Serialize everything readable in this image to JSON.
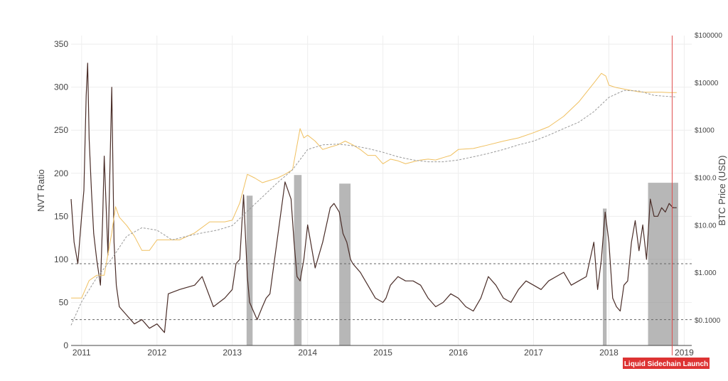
{
  "chart_data": {
    "type": "line",
    "title": "",
    "x_axis": {
      "label": "",
      "ticks": [
        "2011",
        "2012",
        "2013",
        "2014",
        "2015",
        "2016",
        "2017",
        "2018",
        "2019"
      ],
      "range": [
        2010.86,
        2019.1
      ]
    },
    "y_left": {
      "label": "NVT Ratio",
      "range": [
        0,
        360
      ],
      "ticks": [
        "0",
        "50",
        "100",
        "150",
        "200",
        "250",
        "300",
        "350"
      ]
    },
    "y_right": {
      "label": "BTC Price (USD)",
      "scale": "log",
      "range": [
        0.03,
        100000
      ],
      "ticks": [
        "$0.1000",
        "$1.000",
        "$10.00",
        "$100.0",
        "$1000",
        "$10000",
        "$100000"
      ]
    },
    "grid": true,
    "reference_lines": [
      {
        "axis": "left",
        "value": 95,
        "style": "dashed"
      },
      {
        "axis": "left",
        "value": 30,
        "style": "dashed"
      }
    ],
    "vertical_marker": {
      "x": 2018.84,
      "color": "#e05050"
    },
    "annotation": {
      "text": "Liquid Sidechain Launch",
      "color": "#dd3333"
    },
    "shaded_regions": [
      {
        "x0": 2013.19,
        "x1": 2013.27,
        "height": 174
      },
      {
        "x0": 2013.82,
        "x1": 2013.92,
        "height": 198
      },
      {
        "x0": 2014.42,
        "x1": 2014.57,
        "height": 188
      },
      {
        "x0": 2017.92,
        "x1": 2017.97,
        "height": 159
      },
      {
        "x0": 2018.52,
        "x1": 2018.92,
        "height": 189
      }
    ],
    "series": [
      {
        "axis": "left",
        "color": "#4a2d28",
        "x": [
          2010.86,
          2010.9,
          2010.95,
          2011.0,
          2011.03,
          2011.06,
          2011.08,
          2011.1,
          2011.13,
          2011.16,
          2011.2,
          2011.25,
          2011.28,
          2011.3,
          2011.35,
          2011.4,
          2011.43,
          2011.46,
          2011.5,
          2011.55,
          2011.6,
          2011.7,
          2011.8,
          2011.9,
          2012.0,
          2012.1,
          2012.15,
          2012.3,
          2012.5,
          2012.6,
          2012.75,
          2012.9,
          2013.0,
          2013.05,
          2013.1,
          2013.15,
          2013.2,
          2013.23,
          2013.28,
          2013.33,
          2013.4,
          2013.45,
          2013.5,
          2013.6,
          2013.7,
          2013.78,
          2013.82,
          2013.86,
          2013.9,
          2013.95,
          2014.0,
          2014.1,
          2014.2,
          2014.3,
          2014.35,
          2014.42,
          2014.47,
          2014.52,
          2014.57,
          2014.6,
          2014.7,
          2014.8,
          2014.9,
          2015.0,
          2015.04,
          2015.1,
          2015.2,
          2015.3,
          2015.4,
          2015.5,
          2015.6,
          2015.7,
          2015.8,
          2015.9,
          2016.0,
          2016.1,
          2016.2,
          2016.3,
          2016.4,
          2016.5,
          2016.6,
          2016.7,
          2016.8,
          2016.9,
          2017.0,
          2017.1,
          2017.2,
          2017.3,
          2017.4,
          2017.5,
          2017.6,
          2017.7,
          2017.75,
          2017.8,
          2017.85,
          2017.9,
          2017.95,
          2018.0,
          2018.05,
          2018.1,
          2018.15,
          2018.2,
          2018.25,
          2018.3,
          2018.35,
          2018.4,
          2018.45,
          2018.5,
          2018.55,
          2018.6,
          2018.65,
          2018.7,
          2018.75,
          2018.8,
          2018.85,
          2018.9
        ],
        "y": [
          170,
          120,
          95,
          150,
          180,
          290,
          328,
          240,
          180,
          130,
          100,
          70,
          150,
          220,
          105,
          300,
          120,
          70,
          45,
          40,
          35,
          25,
          30,
          20,
          25,
          15,
          60,
          65,
          70,
          80,
          45,
          55,
          65,
          95,
          100,
          175,
          80,
          50,
          40,
          30,
          45,
          55,
          60,
          125,
          190,
          170,
          120,
          80,
          75,
          100,
          140,
          90,
          120,
          160,
          165,
          155,
          130,
          120,
          100,
          95,
          85,
          70,
          55,
          50,
          55,
          70,
          80,
          75,
          75,
          70,
          55,
          45,
          50,
          60,
          55,
          45,
          40,
          55,
          80,
          70,
          55,
          50,
          65,
          75,
          70,
          65,
          75,
          80,
          85,
          70,
          75,
          80,
          100,
          120,
          65,
          100,
          155,
          120,
          55,
          45,
          40,
          70,
          75,
          120,
          145,
          110,
          140,
          100,
          170,
          150,
          150,
          160,
          155,
          165,
          160,
          160
        ]
      },
      {
        "axis": "right",
        "color": "#f0c060",
        "x": [
          2010.86,
          2011.0,
          2011.1,
          2011.2,
          2011.3,
          2011.4,
          2011.45,
          2011.5,
          2011.6,
          2011.7,
          2011.8,
          2011.9,
          2012.0,
          2012.1,
          2012.3,
          2012.5,
          2012.7,
          2012.9,
          2013.0,
          2013.1,
          2013.2,
          2013.3,
          2013.4,
          2013.5,
          2013.6,
          2013.7,
          2013.8,
          2013.9,
          2013.95,
          2014.0,
          2014.1,
          2014.2,
          2014.3,
          2014.4,
          2014.5,
          2014.6,
          2014.7,
          2014.8,
          2014.9,
          2015.0,
          2015.1,
          2015.2,
          2015.3,
          2015.4,
          2015.5,
          2015.6,
          2015.7,
          2015.8,
          2015.9,
          2016.0,
          2016.2,
          2016.4,
          2016.6,
          2016.8,
          2017.0,
          2017.2,
          2017.4,
          2017.6,
          2017.8,
          2017.9,
          2017.96,
          2018.0,
          2018.05,
          2018.1,
          2018.2,
          2018.3,
          2018.4,
          2018.5,
          2018.6,
          2018.7,
          2018.8,
          2018.9
        ],
        "y": [
          0.3,
          0.3,
          0.7,
          0.9,
          0.9,
          7,
          25,
          15,
          10,
          6,
          3,
          3,
          5,
          5,
          5,
          7,
          12,
          12,
          13,
          30,
          120,
          100,
          80,
          90,
          100,
          120,
          150,
          1100,
          700,
          800,
          600,
          400,
          450,
          500,
          600,
          500,
          400,
          300,
          300,
          200,
          250,
          230,
          200,
          220,
          240,
          250,
          240,
          270,
          300,
          400,
          420,
          500,
          600,
          700,
          900,
          1200,
          2000,
          4000,
          10000,
          16000,
          14000,
          9000,
          8500,
          8000,
          7500,
          7000,
          6500,
          6400,
          6400,
          6400,
          6300,
          6300
        ]
      },
      {
        "axis": "right",
        "color": "#9a9a9a",
        "style": "dashed",
        "x": [
          2010.86,
          2011.0,
          2011.2,
          2011.4,
          2011.6,
          2011.8,
          2012.0,
          2012.2,
          2012.4,
          2012.6,
          2012.8,
          2013.0,
          2013.2,
          2013.4,
          2013.6,
          2013.8,
          2014.0,
          2014.2,
          2014.4,
          2014.6,
          2014.8,
          2015.0,
          2015.2,
          2015.4,
          2015.6,
          2015.8,
          2016.0,
          2016.2,
          2016.4,
          2016.6,
          2016.8,
          2017.0,
          2017.2,
          2017.4,
          2017.6,
          2017.8,
          2018.0,
          2018.2,
          2018.4,
          2018.6,
          2018.8,
          2018.9
        ],
        "y": [
          0.08,
          0.25,
          0.8,
          2,
          6,
          9,
          8,
          5,
          6,
          7,
          8,
          10,
          20,
          40,
          80,
          150,
          400,
          500,
          520,
          480,
          420,
          350,
          280,
          240,
          220,
          220,
          240,
          280,
          330,
          400,
          500,
          600,
          800,
          1100,
          1500,
          2500,
          5000,
          7000,
          6800,
          5500,
          5200,
          5100
        ]
      }
    ]
  }
}
